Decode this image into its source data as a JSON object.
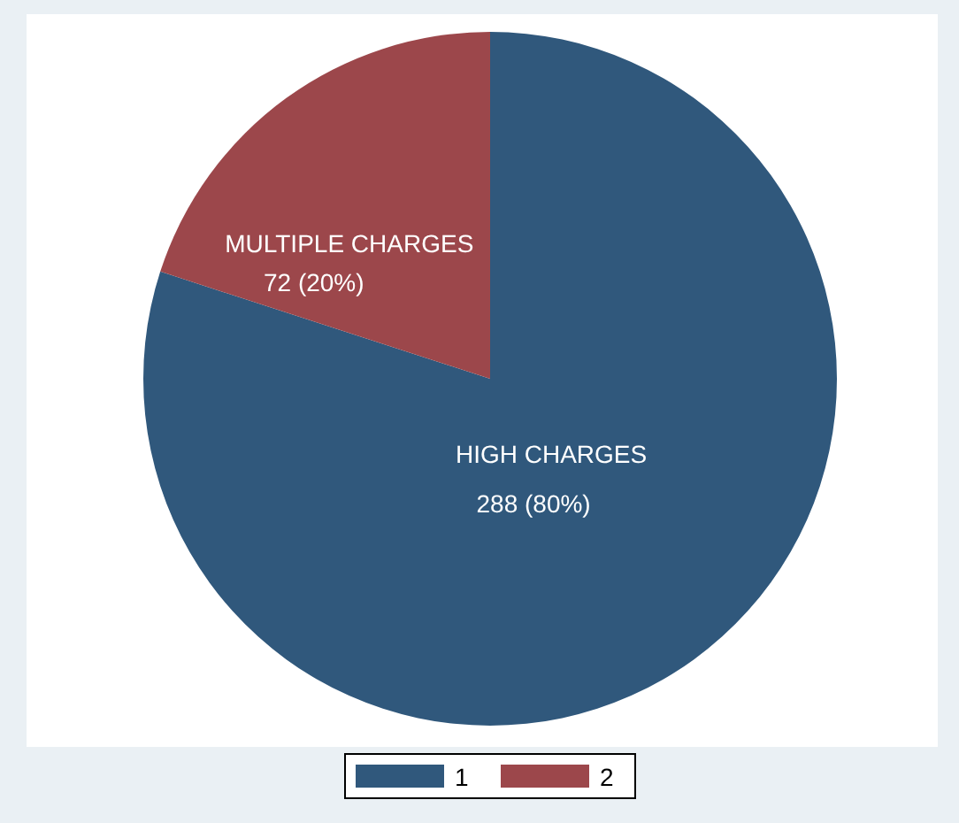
{
  "chart_data": {
    "type": "pie",
    "categories": [
      "1",
      "2"
    ],
    "values": [
      288,
      72
    ],
    "colors": [
      "#30587c",
      "#9c474b"
    ],
    "value_labels": [
      "288 (80%)",
      "72 (20%)"
    ],
    "annotations": [
      {
        "text": "HIGH CHARGES",
        "x": "1"
      },
      {
        "text": "MULTIPLE CHARGES",
        "x": "2"
      }
    ],
    "legend": "bottom"
  }
}
